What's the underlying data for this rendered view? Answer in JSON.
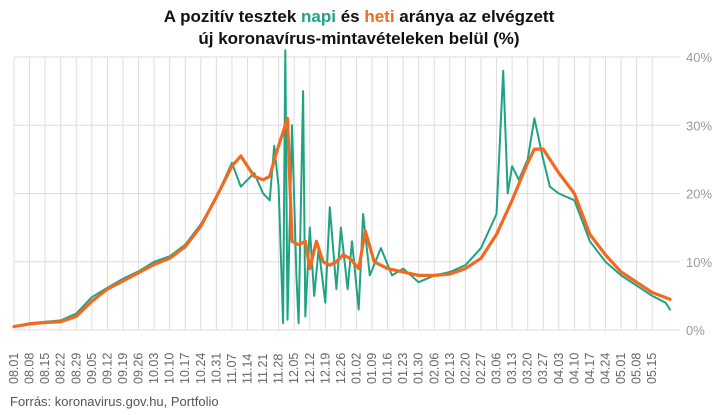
{
  "title": {
    "line1_part1": "A pozitív tesztek ",
    "line1_green": "napi",
    "line1_mid": " és ",
    "line1_orange": "heti",
    "line1_part2": " aránya az elvégzett",
    "line2": "új koronavírus-mintavételeken belül (%)"
  },
  "source": "Forrás: koronavirus.gov.hu, Portfolio",
  "colors": {
    "daily": "#1fa383",
    "weekly": "#f26a21",
    "grid": "#dddddd",
    "ytick": "#9a9a9a",
    "xtick": "#666666"
  },
  "chart_data": {
    "type": "line",
    "title": "A pozitív tesztek napi és heti aránya az elvégzett új koronavírus-mintavételeken belül (%)",
    "xlabel": "",
    "ylabel": "",
    "ylim": [
      0,
      40
    ],
    "yticks": [
      0,
      10,
      20,
      30,
      40
    ],
    "ytick_labels": [
      "0%",
      "10%",
      "20%",
      "30%",
      "40%"
    ],
    "grid": true,
    "x_tick_labels": [
      "08.01",
      "08.08",
      "08.15",
      "08.22",
      "08.29",
      "09.05",
      "09.12",
      "09.19",
      "09.26",
      "10.03",
      "10.10",
      "10.17",
      "10.24",
      "10.31",
      "11.07",
      "11.14",
      "11.21",
      "11.28",
      "12.05",
      "12.12",
      "12.19",
      "12.26",
      "01.02",
      "01.09",
      "01.16",
      "01.23",
      "01.30",
      "02.06",
      "02.13",
      "02.20",
      "02.27",
      "03.06",
      "03.13",
      "03.20",
      "03.27",
      "04.03",
      "04.10",
      "04.17",
      "04.24",
      "05.01",
      "05.08",
      "05.15"
    ],
    "day_count": 296,
    "series": [
      {
        "name": "napi",
        "color": "#1fa383",
        "points": [
          [
            0,
            0.5
          ],
          [
            7,
            1.0
          ],
          [
            14,
            1.2
          ],
          [
            21,
            1.4
          ],
          [
            28,
            2.4
          ],
          [
            35,
            4.8
          ],
          [
            42,
            6.2
          ],
          [
            49,
            7.5
          ],
          [
            56,
            8.6
          ],
          [
            63,
            10.0
          ],
          [
            70,
            10.8
          ],
          [
            77,
            12.5
          ],
          [
            84,
            15.5
          ],
          [
            91,
            19.5
          ],
          [
            98,
            24.5
          ],
          [
            102,
            21.0
          ],
          [
            105,
            22.0
          ],
          [
            108,
            23.0
          ],
          [
            112,
            20.0
          ],
          [
            115,
            19.0
          ],
          [
            117,
            27.0
          ],
          [
            119,
            21.0
          ],
          [
            121,
            1.0
          ],
          [
            122,
            41.0
          ],
          [
            123,
            1.5
          ],
          [
            125,
            30.0
          ],
          [
            127,
            8.0
          ],
          [
            128,
            1.0
          ],
          [
            130,
            35.0
          ],
          [
            131,
            2.0
          ],
          [
            133,
            15.0
          ],
          [
            135,
            5.0
          ],
          [
            137,
            12.0
          ],
          [
            140,
            4.0
          ],
          [
            142,
            18.0
          ],
          [
            145,
            6.0
          ],
          [
            147,
            15.0
          ],
          [
            150,
            6.0
          ],
          [
            152,
            13.0
          ],
          [
            155,
            3.0
          ],
          [
            157,
            17.0
          ],
          [
            160,
            8.0
          ],
          [
            165,
            12.0
          ],
          [
            170,
            8.0
          ],
          [
            175,
            9.0
          ],
          [
            182,
            7.0
          ],
          [
            189,
            8.0
          ],
          [
            196,
            8.5
          ],
          [
            203,
            9.5
          ],
          [
            210,
            12.0
          ],
          [
            217,
            17.0
          ],
          [
            220,
            38.0
          ],
          [
            222,
            20.0
          ],
          [
            224,
            24.0
          ],
          [
            227,
            22.0
          ],
          [
            231,
            25.0
          ],
          [
            234,
            31.0
          ],
          [
            238,
            25.0
          ],
          [
            241,
            21.0
          ],
          [
            245,
            20.0
          ],
          [
            252,
            19.0
          ],
          [
            259,
            13.0
          ],
          [
            266,
            10.0
          ],
          [
            273,
            8.0
          ],
          [
            280,
            6.5
          ],
          [
            287,
            5.0
          ],
          [
            293,
            4.0
          ],
          [
            295,
            3.0
          ]
        ]
      },
      {
        "name": "heti",
        "color": "#f26a21",
        "points": [
          [
            0,
            0.5
          ],
          [
            7,
            0.9
          ],
          [
            14,
            1.1
          ],
          [
            21,
            1.2
          ],
          [
            28,
            2.0
          ],
          [
            35,
            4.2
          ],
          [
            42,
            6.0
          ],
          [
            49,
            7.2
          ],
          [
            56,
            8.4
          ],
          [
            63,
            9.6
          ],
          [
            70,
            10.5
          ],
          [
            77,
            12.2
          ],
          [
            84,
            15.2
          ],
          [
            91,
            19.5
          ],
          [
            98,
            24.0
          ],
          [
            102,
            25.5
          ],
          [
            105,
            24.0
          ],
          [
            108,
            22.5
          ],
          [
            112,
            22.0
          ],
          [
            115,
            22.5
          ],
          [
            118,
            26.0
          ],
          [
            121,
            29.0
          ],
          [
            123,
            31.0
          ],
          [
            125,
            13.0
          ],
          [
            128,
            12.5
          ],
          [
            131,
            13.0
          ],
          [
            133,
            9.0
          ],
          [
            136,
            13.0
          ],
          [
            139,
            10.0
          ],
          [
            142,
            9.5
          ],
          [
            145,
            10.0
          ],
          [
            148,
            11.0
          ],
          [
            151,
            10.5
          ],
          [
            155,
            9.0
          ],
          [
            158,
            14.5
          ],
          [
            162,
            10.0
          ],
          [
            168,
            9.0
          ],
          [
            175,
            8.5
          ],
          [
            182,
            8.0
          ],
          [
            189,
            8.0
          ],
          [
            196,
            8.2
          ],
          [
            203,
            9.0
          ],
          [
            210,
            10.5
          ],
          [
            217,
            14.0
          ],
          [
            224,
            19.0
          ],
          [
            231,
            24.5
          ],
          [
            234,
            26.5
          ],
          [
            238,
            26.5
          ],
          [
            241,
            25.0
          ],
          [
            245,
            23.0
          ],
          [
            252,
            20.0
          ],
          [
            259,
            14.0
          ],
          [
            266,
            11.0
          ],
          [
            273,
            8.5
          ],
          [
            280,
            7.0
          ],
          [
            287,
            5.5
          ],
          [
            295,
            4.5
          ]
        ]
      }
    ]
  }
}
